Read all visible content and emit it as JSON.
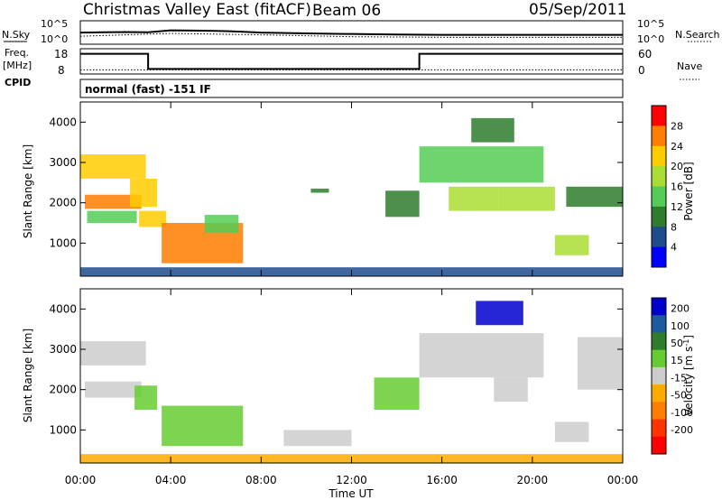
{
  "header": {
    "title": "Christmas Valley East (fitACF)",
    "beam": "Beam 06",
    "date": "05/Sep/2011"
  },
  "noise_panel": {
    "left_label": "N.Sky",
    "right_label": "N.Search",
    "ticks_left": [
      "10^5",
      "10^0"
    ],
    "ticks_right": [
      "10^5",
      "10^0"
    ]
  },
  "freq_panel": {
    "left_label_1": "Freq.",
    "left_label_2": "[MHz]",
    "cpid_label": "CPID",
    "ticks_left": [
      "18",
      "8"
    ],
    "ticks_right": [
      "60",
      "0"
    ],
    "right_label": "Nave"
  },
  "cpid_text": "normal (fast) -151 IF",
  "power_panel": {
    "ylabel": "Slant Range [km]",
    "yticks": [
      "4000",
      "3000",
      "2000",
      "1000"
    ],
    "colorbar_label": "Power [dB]",
    "colorbar_ticks": [
      "28",
      "24",
      "20",
      "16",
      "12",
      "8",
      "4"
    ],
    "colorbar_colors": [
      "#ff0000",
      "#ff7d00",
      "#ffcc00",
      "#aadd33",
      "#55cc55",
      "#2d7d2d",
      "#1e4c8c",
      "#0000ff"
    ]
  },
  "velocity_panel": {
    "ylabel": "Slant Range [km]",
    "yticks": [
      "4000",
      "3000",
      "2000",
      "1000"
    ],
    "colorbar_label": "Velocity [m s",
    "colorbar_label_sup": "-1",
    "colorbar_label_end": "]",
    "colorbar_ticks": [
      "200",
      "100",
      "50",
      "15",
      "-15",
      "-50",
      "-100",
      "-200"
    ],
    "colorbar_colors": [
      "#0000cc",
      "#1e5aa0",
      "#2d7d2d",
      "#66cc33",
      "#cccccc",
      "#ffaa00",
      "#ff7d00",
      "#ff3300",
      "#ff0000"
    ]
  },
  "xaxis": {
    "ticks": [
      "00:00",
      "04:00",
      "08:00",
      "12:00",
      "16:00",
      "20:00",
      "00:00"
    ],
    "label": "Time UT"
  },
  "chart_data": [
    {
      "type": "line",
      "title": "Christmas Valley East (fitACF)",
      "subtitle": "Beam 06",
      "date": "05/Sep/2011",
      "x_range_hours": [
        0,
        24
      ],
      "series_meta": [
        {
          "axis": "left",
          "name": "N.Sky",
          "scale": "log",
          "ylim": [
            1,
            100000
          ]
        },
        {
          "axis": "right",
          "name": "N.Search",
          "scale": "log",
          "ylim": [
            1,
            100000
          ]
        }
      ],
      "series": [
        {
          "name": "N.Sky",
          "x": [
            0,
            1,
            2,
            3,
            4,
            5,
            6,
            7,
            8,
            10,
            12,
            14,
            16,
            18,
            20,
            22,
            24
          ],
          "values": [
            300,
            350,
            400,
            350,
            900,
            800,
            700,
            500,
            300,
            200,
            150,
            120,
            100,
            100,
            100,
            100,
            100
          ]
        },
        {
          "name": "N.Search",
          "x": [
            0,
            4,
            8,
            12,
            16,
            20,
            24
          ],
          "values": [
            50,
            200,
            100,
            40,
            30,
            30,
            30
          ]
        }
      ]
    },
    {
      "type": "line",
      "title": "",
      "x_range_hours": [
        0,
        24
      ],
      "series_meta": [
        {
          "axis": "left",
          "name": "Freq.",
          "unit": "MHz",
          "ylim": [
            8,
            18
          ]
        },
        {
          "axis": "right",
          "name": "Nave",
          "ylim": [
            0,
            60
          ]
        }
      ],
      "series": [
        {
          "name": "Freq.",
          "x": [
            0,
            3,
            3,
            15,
            15,
            24
          ],
          "values": [
            16,
            16,
            10,
            10,
            16,
            16
          ]
        },
        {
          "name": "Nave",
          "x": [
            0,
            24
          ],
          "values": [
            10,
            10
          ]
        }
      ]
    },
    {
      "type": "heatmap",
      "title": "Power [dB]",
      "xlabel": "Time UT",
      "ylabel": "Slant Range [km]",
      "x_range_hours": [
        0,
        24
      ],
      "ylim": [
        180,
        4500
      ],
      "value_range": [
        0,
        30
      ],
      "regions": [
        {
          "t": [
            0,
            2.9
          ],
          "r": [
            2600,
            3200
          ],
          "v": 22
        },
        {
          "t": [
            0.2,
            2.7
          ],
          "r": [
            1850,
            2200
          ],
          "v": 24
        },
        {
          "t": [
            0.3,
            2.5
          ],
          "r": [
            1500,
            1800
          ],
          "v": 12
        },
        {
          "t": [
            2.2,
            3.4
          ],
          "r": [
            1900,
            2600
          ],
          "v": 20
        },
        {
          "t": [
            2.6,
            3.8
          ],
          "r": [
            1400,
            1800
          ],
          "v": 20
        },
        {
          "t": [
            3.6,
            7.2
          ],
          "r": [
            500,
            1500
          ],
          "v": 24
        },
        {
          "t": [
            5.5,
            7.0
          ],
          "r": [
            1250,
            1700
          ],
          "v": 14
        },
        {
          "t": [
            10.2,
            11.0
          ],
          "r": [
            2250,
            2350
          ],
          "v": 8
        },
        {
          "t": [
            13.5,
            15.0
          ],
          "r": [
            1650,
            2300
          ],
          "v": 10
        },
        {
          "t": [
            15.0,
            20.5
          ],
          "r": [
            2500,
            3400
          ],
          "v": 12
        },
        {
          "t": [
            16.3,
            18.5
          ],
          "r": [
            1800,
            2400
          ],
          "v": 18
        },
        {
          "t": [
            18.5,
            21.0
          ],
          "r": [
            1800,
            2400
          ],
          "v": 16
        },
        {
          "t": [
            17.3,
            19.2
          ],
          "r": [
            3500,
            4100
          ],
          "v": 8
        },
        {
          "t": [
            21.0,
            22.5
          ],
          "r": [
            700,
            1200
          ],
          "v": 16
        },
        {
          "t": [
            21.5,
            24
          ],
          "r": [
            1900,
            2400
          ],
          "v": 8
        },
        {
          "t": [
            0,
            24
          ],
          "r": [
            180,
            400
          ],
          "v": 4
        }
      ]
    },
    {
      "type": "heatmap",
      "title": "Velocity [m s-1]",
      "xlabel": "Time UT",
      "ylabel": "Slant Range [km]",
      "x_range_hours": [
        0,
        24
      ],
      "ylim": [
        180,
        4500
      ],
      "value_range": [
        -200,
        200
      ],
      "regions": [
        {
          "t": [
            0,
            2.9
          ],
          "r": [
            2600,
            3200
          ],
          "v": 0
        },
        {
          "t": [
            0.2,
            2.7
          ],
          "r": [
            1800,
            2200
          ],
          "v": 0
        },
        {
          "t": [
            2.4,
            3.4
          ],
          "r": [
            1500,
            2100
          ],
          "v": 30
        },
        {
          "t": [
            3.6,
            7.2
          ],
          "r": [
            600,
            1600
          ],
          "v": 30
        },
        {
          "t": [
            9.0,
            12.0
          ],
          "r": [
            600,
            1000
          ],
          "v": 0
        },
        {
          "t": [
            13.0,
            15.0
          ],
          "r": [
            1500,
            2300
          ],
          "v": 30
        },
        {
          "t": [
            15.0,
            20.5
          ],
          "r": [
            2300,
            3400
          ],
          "v": 0
        },
        {
          "t": [
            18.3,
            19.8
          ],
          "r": [
            1700,
            2300
          ],
          "v": 0
        },
        {
          "t": [
            17.5,
            19.6
          ],
          "r": [
            3600,
            4200
          ],
          "v": 200
        },
        {
          "t": [
            21.0,
            22.5
          ],
          "r": [
            700,
            1200
          ],
          "v": 0
        },
        {
          "t": [
            22.0,
            24
          ],
          "r": [
            2000,
            3300
          ],
          "v": 0
        },
        {
          "t": [
            0,
            24
          ],
          "r": [
            180,
            400
          ],
          "v": -30
        }
      ]
    }
  ]
}
